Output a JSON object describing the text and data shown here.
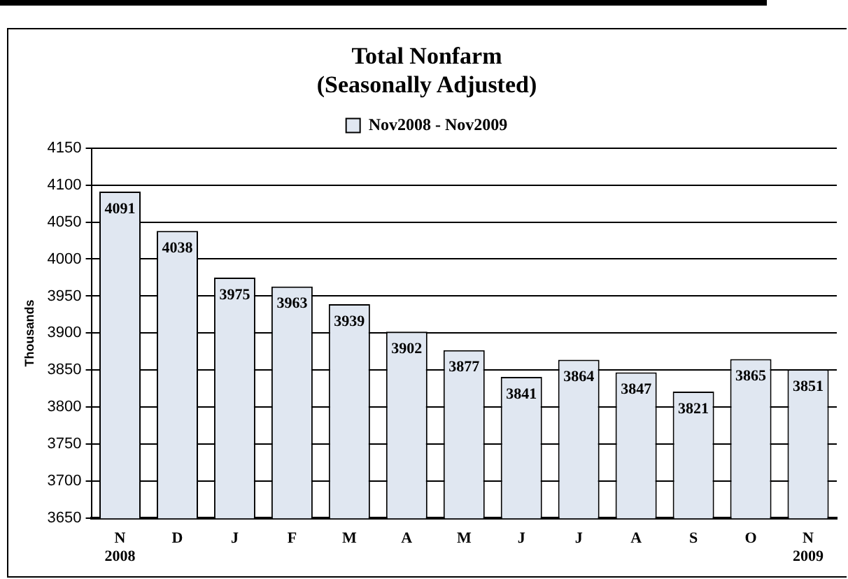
{
  "chart_data": {
    "type": "bar",
    "title": "Total Nonfarm",
    "subtitle": "(Seasonally Adjusted)",
    "ylabel": "Thousands",
    "categories": [
      "N\n2008",
      "D",
      "J",
      "F",
      "M",
      "A",
      "M",
      "J",
      "J",
      "A",
      "S",
      "O",
      "N\n2009"
    ],
    "series": [
      {
        "name": "Nov2008 - Nov2009",
        "color": "#e0e7f1",
        "values": [
          4091,
          4038,
          3975,
          3963,
          3939,
          3902,
          3877,
          3841,
          3864,
          3847,
          3821,
          3865,
          3851
        ]
      }
    ],
    "ylim": [
      3650,
      4150
    ],
    "yticks": [
      3650,
      3700,
      3750,
      3800,
      3850,
      3900,
      3950,
      4000,
      4050,
      4100,
      4150
    ],
    "grid": "y",
    "legend": "top",
    "data_labels": true
  }
}
